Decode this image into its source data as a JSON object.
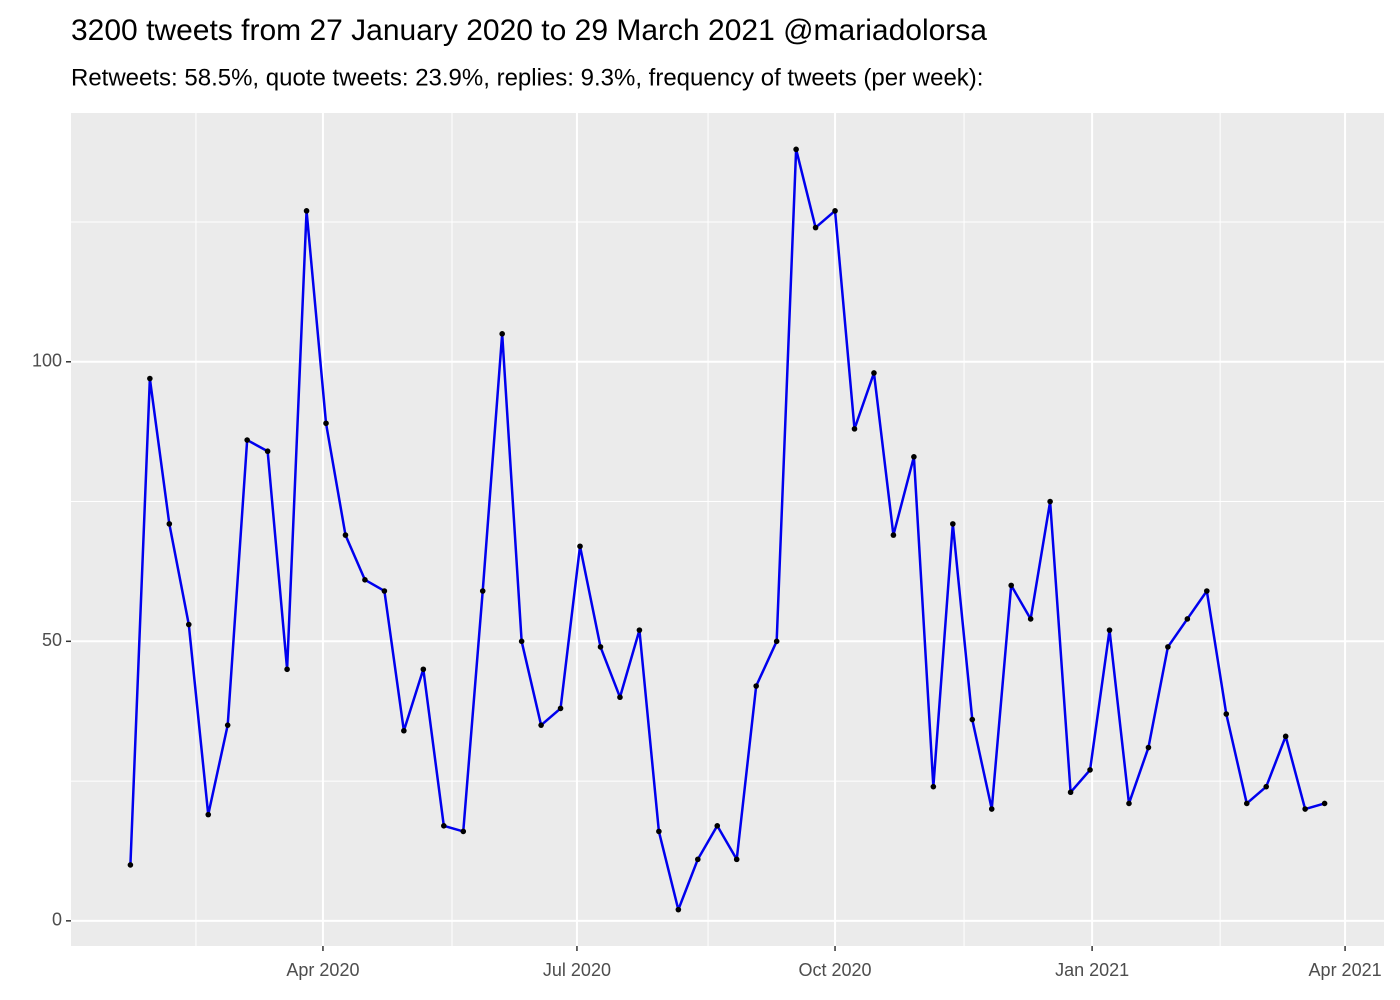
{
  "chart_data": {
    "type": "line",
    "title": "3200 tweets from 27 January 2020 to 29 March 2021 @mariadolorsa",
    "subtitle": "Retweets: 58.5%, quote tweets: 23.9%, replies: 9.3%, frequency of tweets (per week):",
    "x": [
      2020.061,
      2020.08,
      2020.099,
      2020.118,
      2020.137,
      2020.156,
      2020.175,
      2020.195,
      2020.214,
      2020.233,
      2020.252,
      2020.271,
      2020.29,
      2020.309,
      2020.328,
      2020.347,
      2020.367,
      2020.386,
      2020.405,
      2020.424,
      2020.443,
      2020.462,
      2020.481,
      2020.5,
      2020.52,
      2020.539,
      2020.558,
      2020.577,
      2020.596,
      2020.615,
      2020.634,
      2020.653,
      2020.672,
      2020.692,
      2020.711,
      2020.73,
      2020.749,
      2020.768,
      2020.787,
      2020.806,
      2020.826,
      2020.845,
      2020.864,
      2020.883,
      2020.902,
      2020.921,
      2020.94,
      2020.959,
      2020.979,
      2020.998,
      2021.017,
      2021.036,
      2021.055,
      2021.074,
      2021.093,
      2021.112,
      2021.131,
      2021.151,
      2021.17,
      2021.189,
      2021.208,
      2021.227
    ],
    "values": [
      10,
      97,
      71,
      53,
      19,
      35,
      86,
      84,
      45,
      127,
      89,
      69,
      61,
      59,
      34,
      45,
      17,
      16,
      59,
      105,
      50,
      35,
      38,
      67,
      49,
      40,
      52,
      16,
      2,
      11,
      17,
      11,
      42,
      50,
      138,
      124,
      127,
      88,
      98,
      69,
      83,
      24,
      71,
      36,
      20,
      60,
      54,
      75,
      23,
      27,
      52,
      21,
      31,
      49,
      54,
      59,
      37,
      21,
      24,
      33,
      20,
      21
    ],
    "color": "#0000ee",
    "point_color": "#000000",
    "xlim": [
      2020.003,
      2021.285
    ],
    "xticks": [
      {
        "value": 2020.249,
        "label": "Apr 2020"
      },
      {
        "value": 2020.497,
        "label": "Jul 2020"
      },
      {
        "value": 2020.749,
        "label": "Oct 2020"
      },
      {
        "value": 2021.0,
        "label": "Jan 2021"
      },
      {
        "value": 2021.247,
        "label": "Apr 2021"
      }
    ],
    "xminorticks": [
      2020.125,
      2020.375,
      2020.625,
      2020.875,
      2021.125
    ],
    "ylim": [
      -4.5,
      144.5
    ],
    "yticks": [
      0,
      50,
      100
    ],
    "yminorticks": [
      25,
      75,
      125
    ],
    "grid": true
  }
}
